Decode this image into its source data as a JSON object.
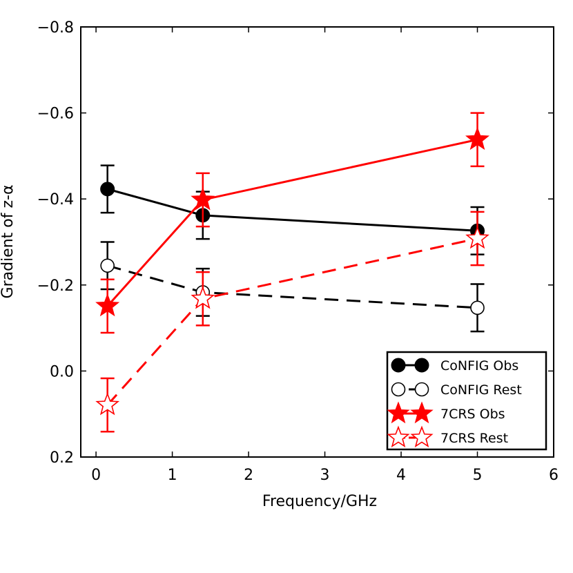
{
  "chart_data": {
    "type": "line",
    "title": "",
    "xlabel": "Frequency/GHz",
    "ylabel": "Gradient of z-α",
    "xlim": [
      -0.2,
      6
    ],
    "ylim": [
      0.2,
      -0.8
    ],
    "xticks": [
      0,
      1,
      2,
      3,
      4,
      5,
      6
    ],
    "xtick_labels": [
      "0",
      "1",
      "2",
      "3",
      "4",
      "5",
      "6"
    ],
    "yticks": [
      -0.8,
      -0.6,
      -0.4,
      -0.2,
      0.0,
      0.2
    ],
    "ytick_labels": [
      "−0.8",
      "−0.6",
      "−0.4",
      "−0.2",
      "0.0",
      "0.2"
    ],
    "legend_position": "bottom-right",
    "series": [
      {
        "name": "CoNFIG Obs",
        "color": "#000000",
        "marker": "filled-circle",
        "line": "solid",
        "x": [
          0.15,
          1.4,
          5.0
        ],
        "y": [
          -0.423,
          -0.362,
          -0.326
        ],
        "err": [
          0.055,
          0.055,
          0.055
        ]
      },
      {
        "name": "CoNFIG Rest",
        "color": "#000000",
        "marker": "open-circle",
        "line": "dashed",
        "x": [
          0.15,
          1.4,
          5.0
        ],
        "y": [
          -0.245,
          -0.183,
          -0.147
        ],
        "err": [
          0.055,
          0.055,
          0.055
        ]
      },
      {
        "name": "7CRS Obs",
        "color": "#ff0000",
        "marker": "filled-star",
        "line": "solid",
        "x": [
          0.15,
          1.4,
          5.0
        ],
        "y": [
          -0.151,
          -0.398,
          -0.538
        ],
        "err": [
          0.062,
          0.062,
          0.062
        ]
      },
      {
        "name": "7CRS Rest",
        "color": "#ff0000",
        "marker": "open-star",
        "line": "dashed",
        "x": [
          0.15,
          1.4,
          5.0
        ],
        "y": [
          0.079,
          -0.168,
          -0.308
        ],
        "err": [
          0.062,
          0.062,
          0.062
        ]
      }
    ]
  }
}
